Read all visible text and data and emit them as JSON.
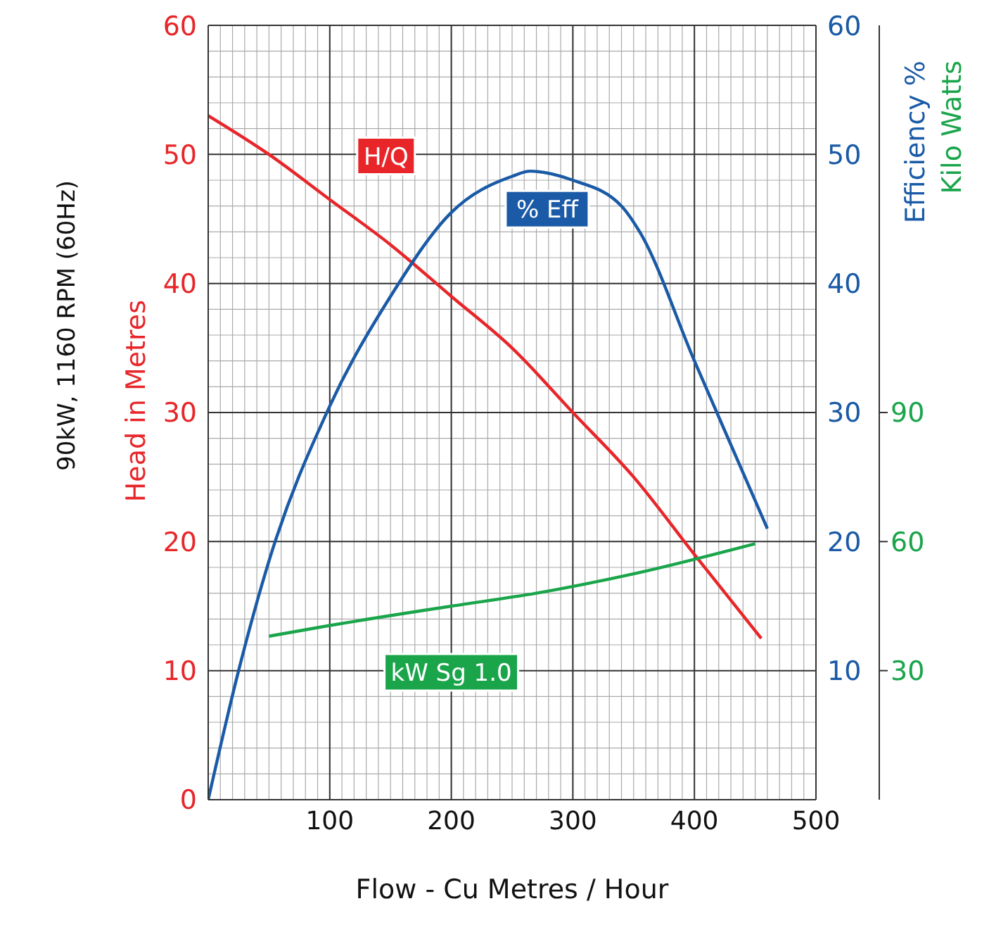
{
  "chart_data": {
    "type": "line",
    "subtitle": "90kW, 1160 RPM (60Hz)",
    "xlabel": "Flow - Cu Metres / Hour",
    "ylabel": "Head in Metres",
    "y2label": "Efficiency %",
    "y3label": "Kilo Watts",
    "xlim": [
      0,
      500
    ],
    "xticks": [
      {
        "value": 0,
        "label": null
      },
      100,
      200,
      300,
      400,
      500
    ],
    "ylim": [
      0,
      60
    ],
    "yticks": [
      0,
      10,
      20,
      30,
      40,
      50,
      60
    ],
    "y2lim": [
      0,
      60
    ],
    "y2ticks": [
      10,
      20,
      30,
      40,
      50,
      60
    ],
    "y3lim": [
      0,
      180
    ],
    "y3ticks": [
      30,
      60,
      90
    ],
    "grid": true,
    "legend": false,
    "marker": "none",
    "line_style": "solid",
    "series": [
      {
        "name": "H/Q",
        "color": "#e8262a",
        "x": [
          0,
          50,
          100,
          150,
          200,
          250,
          300,
          350,
          400,
          455
        ],
        "values": [
          53,
          50,
          46.5,
          43,
          39,
          35,
          30,
          25,
          19,
          12.5
        ]
      },
      {
        "name": "% Eff",
        "color": "#1a5aa6",
        "axis": "y2",
        "x": [
          0,
          25,
          50,
          100,
          150,
          200,
          250,
          265,
          300,
          340,
          355,
          400,
          460
        ],
        "values": [
          0,
          10,
          18.5,
          30.5,
          39,
          45.5,
          48.3,
          48.7,
          48,
          46,
          44,
          34,
          21
        ]
      },
      {
        "name": "kW Sg 1.0",
        "color": "#1aa54b",
        "axis": "y3",
        "x": [
          50,
          100,
          200,
          270,
          350,
          450
        ],
        "values": [
          38,
          40.5,
          45,
          48,
          52.5,
          59.5
        ]
      }
    ]
  }
}
